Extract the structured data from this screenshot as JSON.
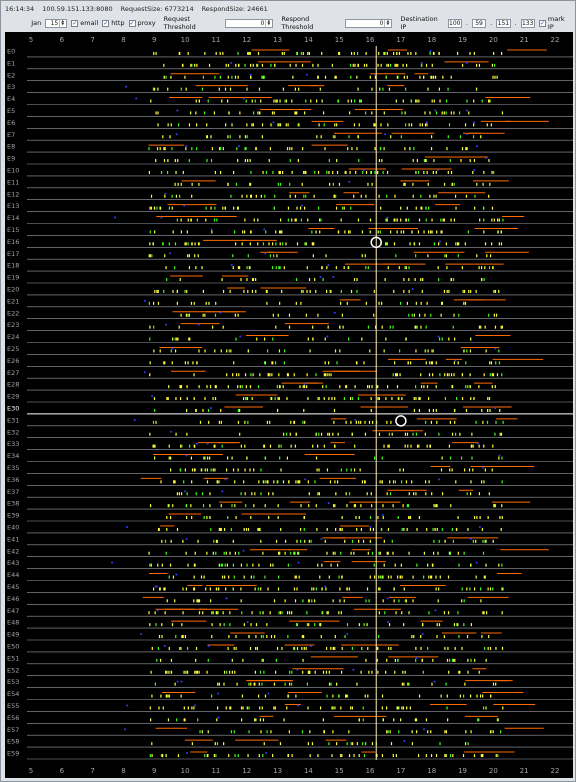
{
  "status": {
    "time": "16:14:34",
    "address": "100.59.151.133:8080",
    "request_size": "RequestSize: 6773214",
    "respond_size": "RespondSize: 24661"
  },
  "toolbar": {
    "month": "Jan",
    "day": "15",
    "email": {
      "label": "email",
      "checked": true
    },
    "http": {
      "label": "http",
      "checked": true
    },
    "proxy": {
      "label": "proxy",
      "checked": true
    },
    "request_threshold_label": "Request Threshold",
    "request_threshold_value": "0",
    "respond_threshold_label": "Respond Threshold",
    "respond_threshold_value": "0",
    "destination_ip_label": "Destination IP",
    "ip": [
      "100",
      "59",
      "151",
      "133"
    ],
    "mark_ip": {
      "label": "mark IP",
      "checked": true
    }
  },
  "chart_data": {
    "type": "scatter",
    "x_ticks": [
      "5",
      "6",
      "7",
      "8",
      "9",
      "10",
      "11",
      "12",
      "13",
      "14",
      "15",
      "16",
      "17",
      "18",
      "19",
      "20",
      "21",
      "22"
    ],
    "xlim": [
      5,
      22
    ],
    "rows": [
      "E0",
      "E1",
      "E2",
      "E3",
      "E4",
      "E5",
      "E6",
      "E7",
      "E8",
      "E9",
      "E10",
      "E11",
      "E12",
      "E13",
      "E14",
      "E15",
      "E16",
      "E17",
      "E18",
      "E19",
      "E20",
      "E21",
      "E22",
      "E23",
      "E24",
      "E25",
      "E26",
      "E27",
      "E28",
      "E29",
      "E30",
      "E31",
      "E32",
      "E33",
      "E34",
      "E35",
      "E36",
      "E37",
      "E38",
      "E39",
      "E40",
      "E41",
      "E42",
      "E43",
      "E44",
      "E45",
      "E46",
      "E47",
      "E48",
      "E49",
      "E50",
      "E51",
      "E52",
      "E53",
      "E54",
      "E55",
      "E56",
      "E57",
      "E58",
      "E59"
    ],
    "highlighted_row": "E30",
    "current_time": 16.2,
    "markers": [
      {
        "row": "E16",
        "x": 16.2
      },
      {
        "row": "E31",
        "x": 17.0
      }
    ],
    "series_colors": {
      "request": "#ffff40",
      "email": "#40ff20",
      "respond": "#ff6a00",
      "proxy": "#3040ff",
      "row_line": "#9aa0a6",
      "highlight_line": "#ffffff",
      "time_line": "#fff2b0"
    }
  }
}
